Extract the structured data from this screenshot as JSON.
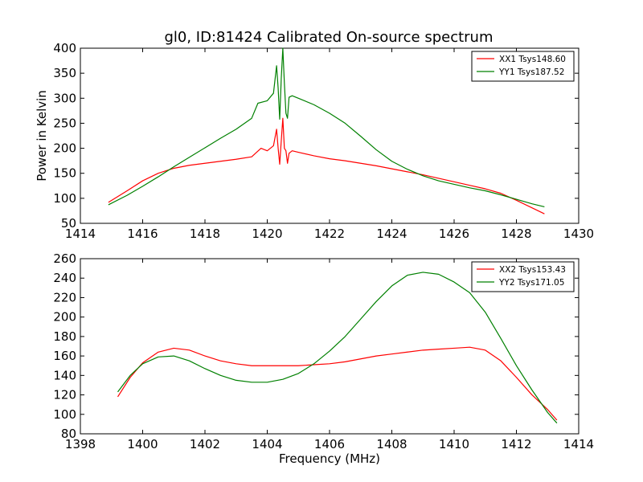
{
  "figure": {
    "title": "gl0, ID:81424 Calibrated On-source spectrum",
    "colors": {
      "xx": "#ff0000",
      "yy": "#008000"
    }
  },
  "chart_data": [
    {
      "type": "line",
      "title": "gl0, ID:81424 Calibrated On-source spectrum",
      "xlabel": "",
      "ylabel": "Power in Kelvin",
      "xlim": [
        1414,
        1430
      ],
      "ylim": [
        50,
        400
      ],
      "xticks": [
        "1414",
        "1416",
        "1418",
        "1420",
        "1422",
        "1424",
        "1426",
        "1428",
        "1430"
      ],
      "yticks": [
        "50",
        "100",
        "150",
        "200",
        "250",
        "300",
        "350",
        "400"
      ],
      "legend_position": "top-right",
      "grid": false,
      "series": [
        {
          "name": "XX1 Tsys148.60",
          "color": "#ff0000",
          "x": [
            1414.9,
            1415.5,
            1416.0,
            1416.5,
            1417.0,
            1417.5,
            1418.0,
            1418.5,
            1419.0,
            1419.5,
            1419.8,
            1420.0,
            1420.2,
            1420.3,
            1420.35,
            1420.4,
            1420.45,
            1420.5,
            1420.55,
            1420.6,
            1420.65,
            1420.7,
            1420.8,
            1421.0,
            1421.5,
            1422.0,
            1422.5,
            1423.0,
            1423.5,
            1424.0,
            1424.5,
            1425.0,
            1425.5,
            1426.0,
            1426.5,
            1427.0,
            1427.5,
            1428.0,
            1428.5,
            1428.9
          ],
          "values": [
            92,
            115,
            135,
            150,
            160,
            166,
            170,
            174,
            178,
            183,
            200,
            195,
            205,
            238,
            200,
            168,
            215,
            260,
            200,
            195,
            170,
            190,
            195,
            192,
            185,
            179,
            175,
            170,
            165,
            159,
            153,
            147,
            140,
            133,
            126,
            119,
            110,
            96,
            81,
            69
          ]
        },
        {
          "name": "YY1 Tsys187.52",
          "color": "#008000",
          "x": [
            1414.9,
            1415.5,
            1416.0,
            1416.5,
            1417.0,
            1417.5,
            1418.0,
            1418.5,
            1419.0,
            1419.5,
            1419.7,
            1420.0,
            1420.2,
            1420.3,
            1420.35,
            1420.4,
            1420.45,
            1420.5,
            1420.55,
            1420.6,
            1420.65,
            1420.7,
            1420.8,
            1421.0,
            1421.5,
            1422.0,
            1422.5,
            1423.0,
            1423.5,
            1424.0,
            1424.5,
            1425.0,
            1425.5,
            1426.0,
            1426.5,
            1427.0,
            1427.5,
            1428.0,
            1428.5,
            1428.9
          ],
          "values": [
            87,
            106,
            124,
            143,
            163,
            182,
            201,
            220,
            238,
            260,
            290,
            295,
            310,
            365,
            320,
            258,
            340,
            400,
            330,
            270,
            260,
            302,
            305,
            300,
            287,
            270,
            250,
            224,
            197,
            174,
            158,
            145,
            135,
            128,
            121,
            115,
            107,
            98,
            89,
            83
          ]
        }
      ]
    },
    {
      "type": "line",
      "title": "",
      "xlabel": "Frequency (MHz)",
      "ylabel": "",
      "xlim": [
        1398,
        1414
      ],
      "ylim": [
        80,
        260
      ],
      "xticks": [
        "1398",
        "1400",
        "1402",
        "1404",
        "1406",
        "1408",
        "1410",
        "1412",
        "1414"
      ],
      "yticks": [
        "80",
        "100",
        "120",
        "140",
        "160",
        "180",
        "200",
        "220",
        "240",
        "260"
      ],
      "legend_position": "top-right",
      "grid": false,
      "series": [
        {
          "name": "XX2 Tsys153.43",
          "color": "#ff0000",
          "x": [
            1399.2,
            1399.6,
            1400.0,
            1400.5,
            1401.0,
            1401.5,
            1402.0,
            1402.5,
            1403.0,
            1403.5,
            1404.0,
            1404.5,
            1405.0,
            1405.5,
            1406.0,
            1406.5,
            1407.0,
            1407.5,
            1408.0,
            1408.5,
            1409.0,
            1409.5,
            1410.0,
            1410.5,
            1411.0,
            1411.5,
            1412.0,
            1412.5,
            1413.0,
            1413.3
          ],
          "values": [
            118,
            138,
            153,
            164,
            168,
            166,
            160,
            155,
            152,
            150,
            150,
            150,
            150,
            151,
            152,
            154,
            157,
            160,
            162,
            164,
            166,
            167,
            168,
            169,
            166,
            155,
            138,
            120,
            105,
            94
          ]
        },
        {
          "name": "YY2 Tsys171.05",
          "color": "#008000",
          "x": [
            1399.2,
            1399.6,
            1400.0,
            1400.5,
            1401.0,
            1401.5,
            1402.0,
            1402.5,
            1403.0,
            1403.5,
            1404.0,
            1404.5,
            1405.0,
            1405.5,
            1406.0,
            1406.5,
            1407.0,
            1407.5,
            1408.0,
            1408.5,
            1409.0,
            1409.5,
            1410.0,
            1410.5,
            1411.0,
            1411.5,
            1412.0,
            1412.5,
            1413.0,
            1413.3
          ],
          "values": [
            123,
            140,
            152,
            159,
            160,
            155,
            147,
            140,
            135,
            133,
            133,
            136,
            142,
            152,
            165,
            180,
            198,
            216,
            232,
            243,
            246,
            244,
            236,
            225,
            205,
            178,
            150,
            125,
            102,
            91
          ]
        }
      ]
    }
  ]
}
